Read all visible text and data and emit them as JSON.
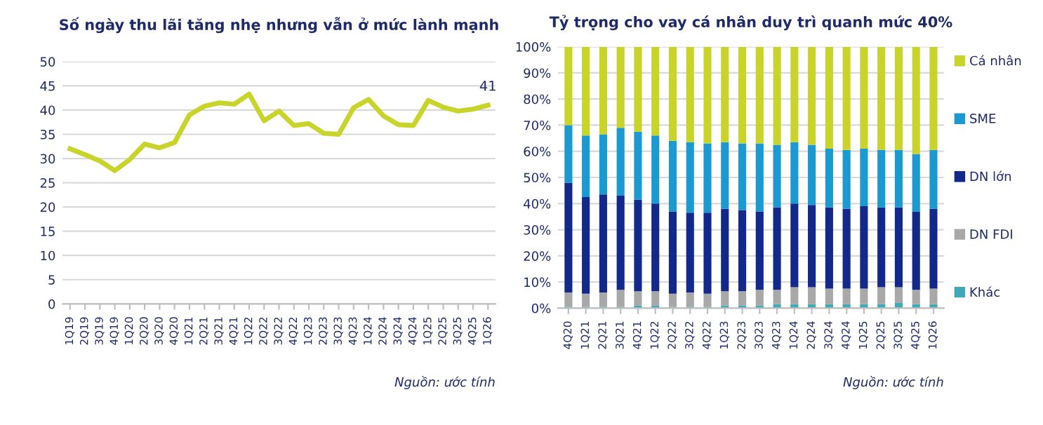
{
  "chart_data": [
    {
      "type": "line",
      "title": "Số ngày thu lãi tăng nhẹ nhưng vẫn ở mức lành mạnh",
      "categories": [
        "1Q19",
        "2Q19",
        "3Q19",
        "4Q19",
        "1Q20",
        "2Q20",
        "3Q20",
        "4Q20",
        "1Q21",
        "2Q21",
        "3Q21",
        "4Q21",
        "1Q22",
        "2Q22",
        "3Q22",
        "4Q22",
        "1Q23",
        "2Q23",
        "3Q23",
        "4Q23",
        "1Q24",
        "2Q24",
        "3Q24",
        "4Q24",
        "1Q25",
        "2Q25",
        "3Q25",
        "4Q25",
        "1Q26"
      ],
      "series": [
        {
          "color": "#c8d42a",
          "values": [
            32,
            30.8,
            29.5,
            27.5,
            29.8,
            33,
            32.2,
            33.3,
            39,
            40.8,
            41.5,
            41.2,
            43.3,
            37.8,
            39.8,
            36.8,
            37.2,
            35.2,
            35,
            40.5,
            42.2,
            38.8,
            37,
            36.8,
            42,
            40.6,
            39.8,
            40.2,
            41
          ],
          "value_labels": [
            null,
            null,
            null,
            null,
            null,
            null,
            null,
            null,
            null,
            null,
            null,
            null,
            null,
            null,
            null,
            null,
            null,
            null,
            null,
            null,
            null,
            null,
            null,
            null,
            null,
            null,
            null,
            null,
            "41"
          ]
        }
      ],
      "ylim": [
        0,
        50
      ],
      "yticks": [
        0,
        5,
        10,
        15,
        20,
        25,
        30,
        35,
        40,
        45,
        50
      ],
      "grid": "y",
      "annotations": [
        "Nguồn: ước tính"
      ]
    },
    {
      "type": "bar",
      "stacked": true,
      "title": "Tỷ trọng cho vay cá nhân duy trì quanh mức 40%",
      "categories": [
        "4Q20",
        "1Q21",
        "2Q21",
        "3Q21",
        "4Q21",
        "1Q22",
        "2Q22",
        "3Q22",
        "4Q22",
        "1Q23",
        "2Q23",
        "3Q23",
        "4Q23",
        "1Q24",
        "2Q24",
        "3Q24",
        "4Q24",
        "1Q25",
        "2Q25",
        "3Q25",
        "4Q25",
        "1Q26"
      ],
      "series": [
        {
          "name": "Khác",
          "color": "#3fa9b5",
          "values": [
            0.5,
            0.5,
            0.5,
            0.5,
            1,
            1,
            0.5,
            0.5,
            0.5,
            1,
            1,
            1,
            1.5,
            1.5,
            1.5,
            1.5,
            1.5,
            1.5,
            1.5,
            2,
            1.5,
            1.5
          ]
        },
        {
          "name": "DN FDI",
          "color": "#a8a8a8",
          "values": [
            5.5,
            5,
            5.5,
            6.5,
            5.5,
            5.5,
            5,
            5.5,
            5,
            5.5,
            5.5,
            6,
            5.5,
            6.5,
            6.5,
            6,
            6,
            6,
            6.5,
            6,
            5.5,
            6
          ]
        },
        {
          "name": "DN lớn",
          "color": "#12288a",
          "values": [
            42,
            37,
            37.5,
            36,
            35,
            33.5,
            31.5,
            30.5,
            31,
            31.5,
            31,
            30,
            31.5,
            32,
            31.5,
            31,
            30.5,
            31.5,
            30.5,
            30.5,
            30,
            30.5
          ]
        },
        {
          "name": "SME",
          "color": "#1b9ad2",
          "values": [
            22,
            23.5,
            23,
            26,
            26,
            26,
            27,
            27,
            26.5,
            25.5,
            25.5,
            26,
            24,
            23.5,
            23,
            22.5,
            22.5,
            22,
            22,
            22,
            22,
            22.5
          ]
        },
        {
          "name": "Cá nhân",
          "color": "#c8d42a",
          "values": [
            30,
            34,
            33.5,
            31,
            32.5,
            34,
            36,
            36.5,
            37,
            36.5,
            37,
            37,
            37.5,
            36.5,
            37.5,
            39,
            39.5,
            39,
            39.5,
            39.5,
            41,
            39.5
          ]
        }
      ],
      "ylim": [
        0,
        100
      ],
      "yticks": [
        {
          "value": 0,
          "label": "0%"
        },
        {
          "value": 10,
          "label": "10%"
        },
        {
          "value": 20,
          "label": "20%"
        },
        {
          "value": 30,
          "label": "30%"
        },
        {
          "value": 40,
          "label": "40%"
        },
        {
          "value": 50,
          "label": "50%"
        },
        {
          "value": 60,
          "label": "60%"
        },
        {
          "value": 70,
          "label": "70%"
        },
        {
          "value": 80,
          "label": "80%"
        },
        {
          "value": 90,
          "label": "90%"
        },
        {
          "value": 100,
          "label": "100%"
        }
      ],
      "grid": "y",
      "legend": "right",
      "annotations": [
        "Nguồn: ước tính"
      ]
    }
  ]
}
